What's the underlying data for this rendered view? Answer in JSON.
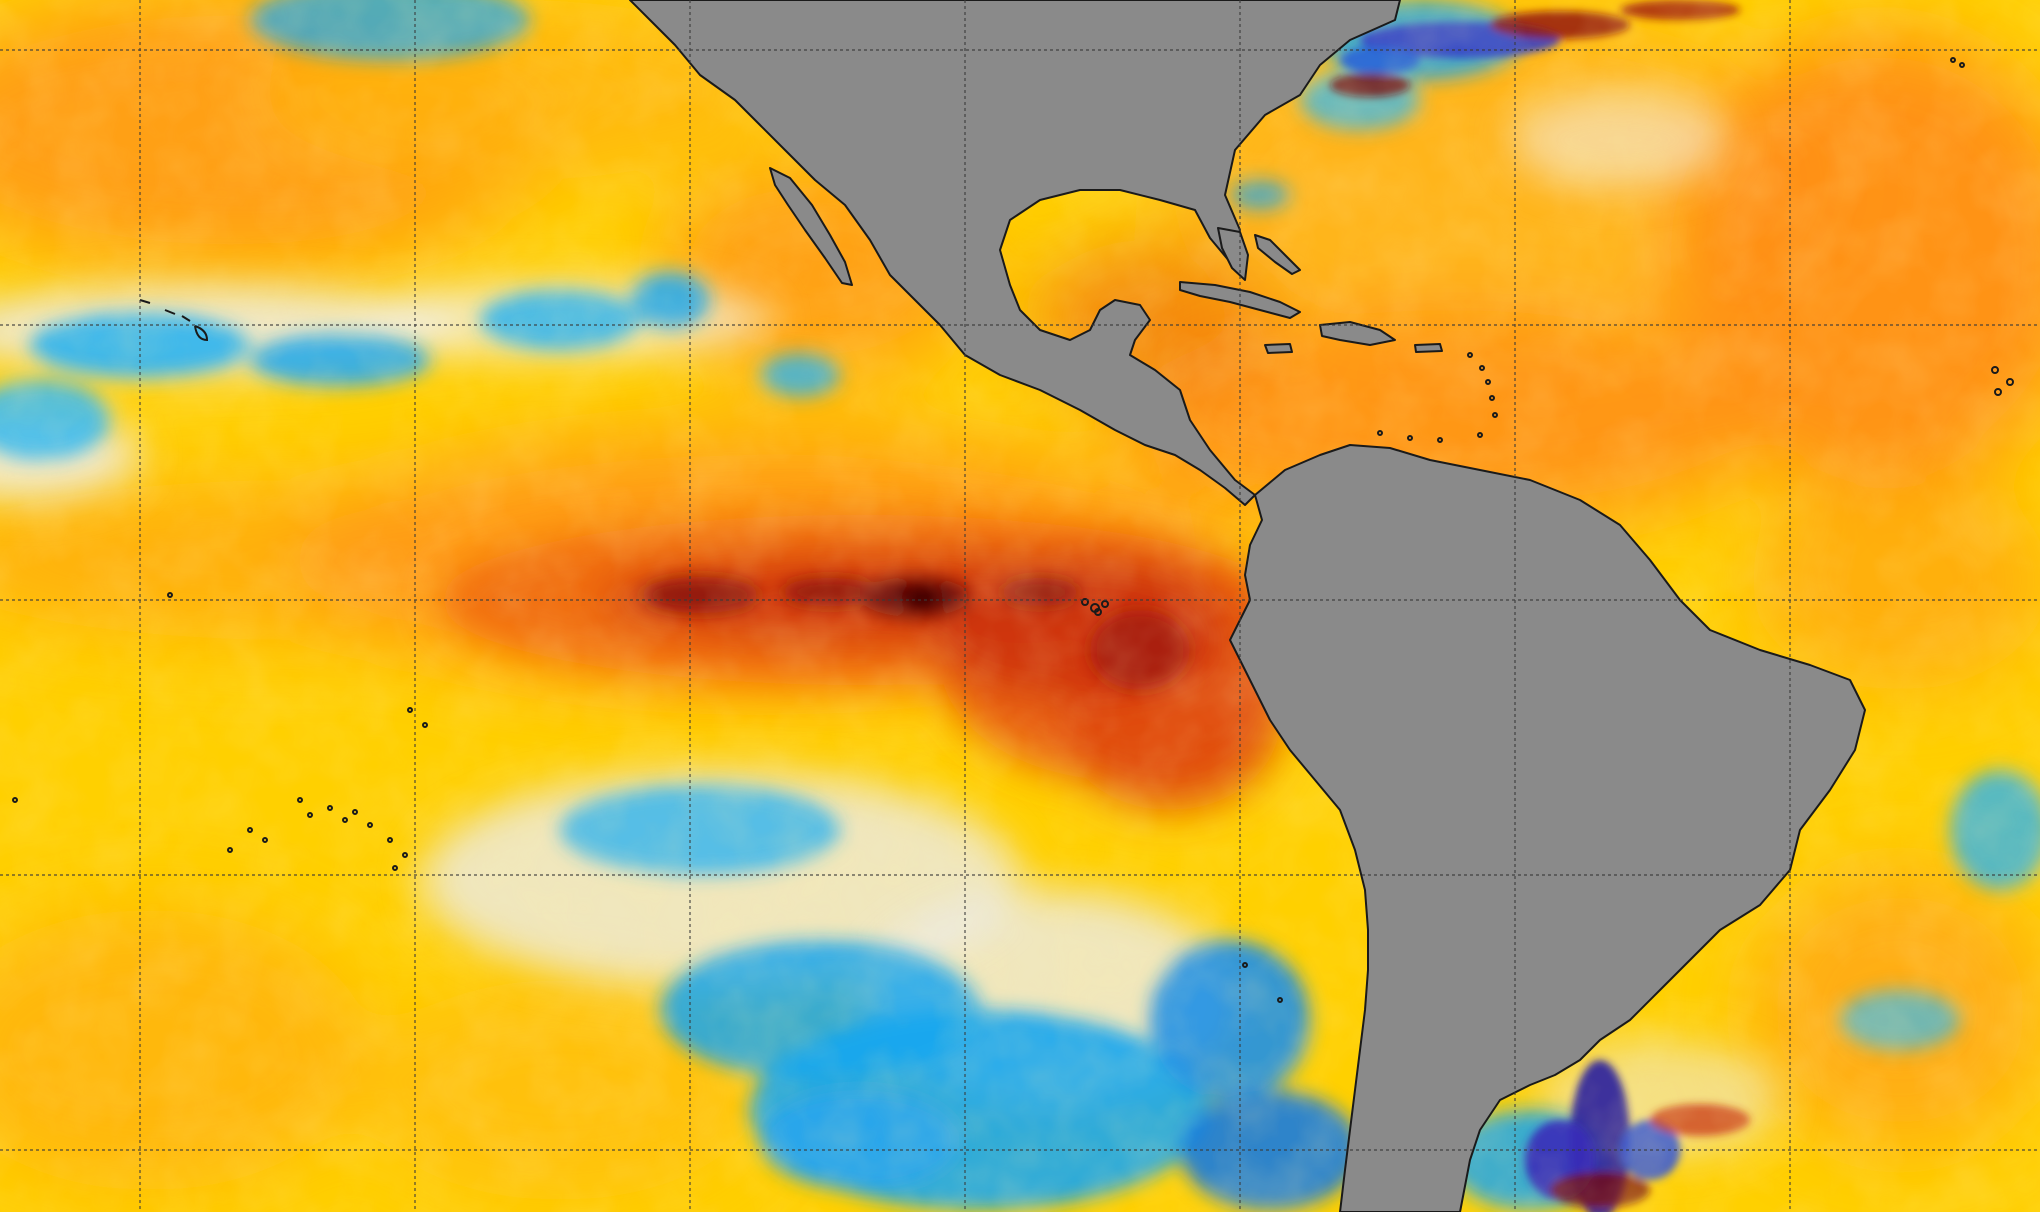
{
  "map": {
    "colors": {
      "cold_deep": "#2a1f9e",
      "cold": "#1aa6f0",
      "cold_light": "#5ccdf5",
      "neutral": "#e8e8e8",
      "warm_light": "#ffe600",
      "warm": "#ffc400",
      "warmer": "#ff9a14",
      "hot": "#f06a10",
      "hotter": "#d23a12",
      "extreme": "#7a0e0e",
      "peak": "#2b0505",
      "land": "#8a8a8a",
      "coastline": "#1a1a1a",
      "graticule": "#3a3a3a"
    }
  }
}
